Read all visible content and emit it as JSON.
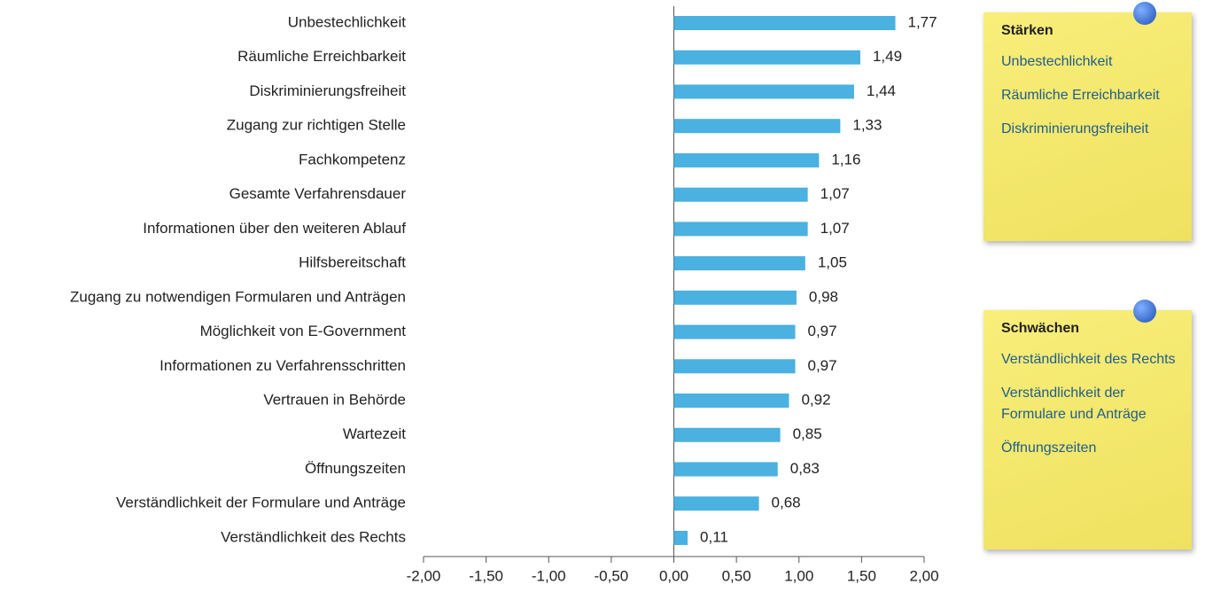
{
  "chart_data": {
    "type": "bar",
    "orientation": "horizontal",
    "color": "#4ab1e0",
    "categories": [
      "Unbestechlichkeit",
      "Räumliche Erreichbarkeit",
      "Diskriminierungsfreiheit",
      "Zugang zur richtigen Stelle",
      "Fachkompetenz",
      "Gesamte Verfahrensdauer",
      "Informationen über den weiteren Ablauf",
      "Hilfsbereitschaft",
      "Zugang zu notwendigen Formularen und Anträgen",
      "Möglichkeit von E-Government",
      "Informationen zu Verfahrensschritten",
      "Vertrauen in Behörde",
      "Wartezeit",
      "Öffnungszeiten",
      "Verständlichkeit der Formulare und Anträge",
      "Verständlichkeit des Rechts"
    ],
    "values": [
      1.77,
      1.49,
      1.44,
      1.33,
      1.16,
      1.07,
      1.07,
      1.05,
      0.98,
      0.97,
      0.97,
      0.92,
      0.85,
      0.83,
      0.68,
      0.11
    ],
    "value_labels": [
      "1,77",
      "1,49",
      "1,44",
      "1,33",
      "1,16",
      "1,07",
      "1,07",
      "1,05",
      "0,98",
      "0,97",
      "0,97",
      "0,92",
      "0,85",
      "0,83",
      "0,68",
      "0,11"
    ],
    "xlim": [
      -2,
      2
    ],
    "xticks": [
      {
        "value": -2,
        "label": "-2,00"
      },
      {
        "value": -1.5,
        "label": "-1,50"
      },
      {
        "value": -1,
        "label": "-1,00"
      },
      {
        "value": -0.5,
        "label": "-0,50"
      },
      {
        "value": 0,
        "label": "0,00"
      },
      {
        "value": 0.5,
        "label": "0,50"
      },
      {
        "value": 1,
        "label": "1,00"
      },
      {
        "value": 1.5,
        "label": "1,50"
      },
      {
        "value": 2,
        "label": "2,00"
      }
    ]
  },
  "notes": [
    {
      "title": "Stärken",
      "items": [
        "Unbestechlichkeit",
        "Räumliche Erreichbarkeit",
        "Diskriminierungsfreiheit"
      ]
    },
    {
      "title": "Schwächen",
      "items": [
        "Verständlichkeit des Rechts",
        "Verständlichkeit der Formulare und Anträge",
        "Öffnungszeiten"
      ]
    }
  ]
}
